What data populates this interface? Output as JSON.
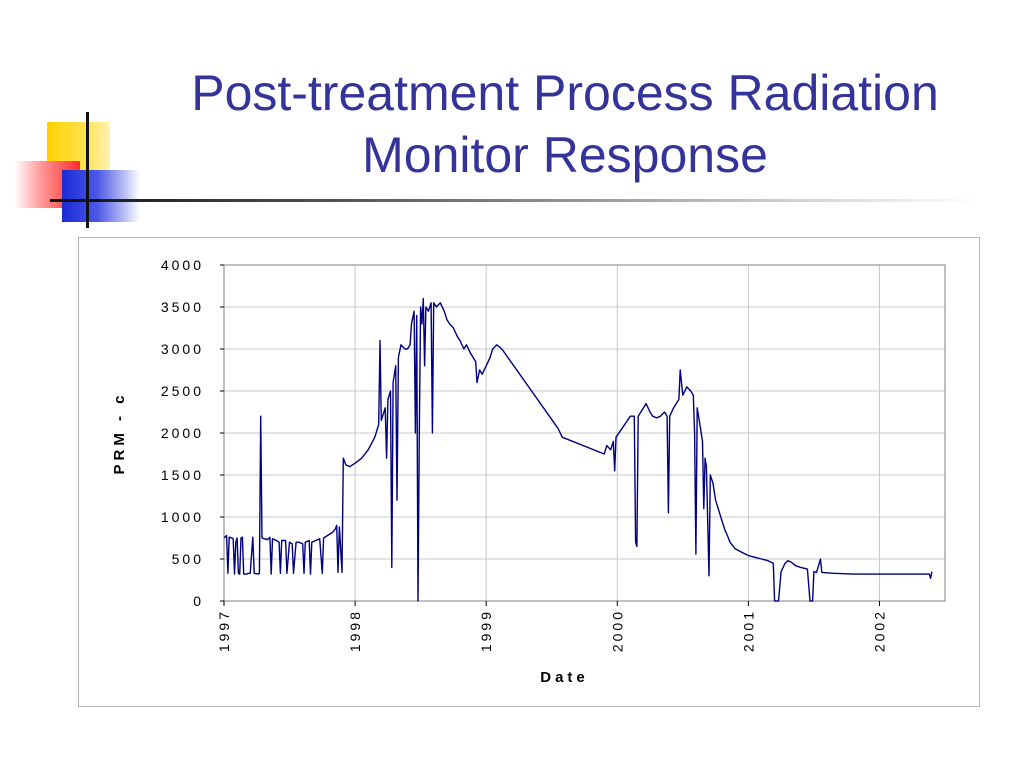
{
  "slide": {
    "title_line1": "Post-treatment Process Radiation",
    "title_line2": "Monitor Response",
    "title_color": "#333399"
  },
  "chart_data": {
    "type": "line",
    "title": "",
    "xlabel": "Date",
    "ylabel": "PRM - c",
    "xlim": [
      1997.0,
      2002.5
    ],
    "ylim": [
      0,
      4000
    ],
    "x_ticks": [
      "1997",
      "1998",
      "1999",
      "2000",
      "2001",
      "2002"
    ],
    "y_ticks": [
      "0",
      "500",
      "1000",
      "1500",
      "2000",
      "2500",
      "3000",
      "3500",
      "4000"
    ],
    "grid": true,
    "legend": "none",
    "series": [
      {
        "color": "#000080",
        "points": [
          [
            1997.0,
            750
          ],
          [
            1997.02,
            780
          ],
          [
            1997.03,
            330
          ],
          [
            1997.04,
            760
          ],
          [
            1997.06,
            750
          ],
          [
            1997.07,
            740
          ],
          [
            1997.08,
            320
          ],
          [
            1997.09,
            700
          ],
          [
            1997.1,
            750
          ],
          [
            1997.11,
            330
          ],
          [
            1997.12,
            320
          ],
          [
            1997.13,
            750
          ],
          [
            1997.14,
            760
          ],
          [
            1997.15,
            320
          ],
          [
            1997.17,
            320
          ],
          [
            1997.19,
            330
          ],
          [
            1997.2,
            330
          ],
          [
            1997.22,
            760
          ],
          [
            1997.23,
            330
          ],
          [
            1997.26,
            320
          ],
          [
            1997.27,
            330
          ],
          [
            1997.28,
            2200
          ],
          [
            1997.29,
            750
          ],
          [
            1997.31,
            740
          ],
          [
            1997.33,
            730
          ],
          [
            1997.35,
            760
          ],
          [
            1997.36,
            320
          ],
          [
            1997.37,
            740
          ],
          [
            1997.4,
            720
          ],
          [
            1997.42,
            700
          ],
          [
            1997.43,
            330
          ],
          [
            1997.44,
            720
          ],
          [
            1997.47,
            720
          ],
          [
            1997.48,
            330
          ],
          [
            1997.5,
            700
          ],
          [
            1997.52,
            680
          ],
          [
            1997.53,
            330
          ],
          [
            1997.55,
            700
          ],
          [
            1997.57,
            700
          ],
          [
            1997.6,
            680
          ],
          [
            1997.61,
            330
          ],
          [
            1997.62,
            700
          ],
          [
            1997.65,
            720
          ],
          [
            1997.66,
            320
          ],
          [
            1997.67,
            700
          ],
          [
            1997.7,
            720
          ],
          [
            1997.73,
            740
          ],
          [
            1997.75,
            330
          ],
          [
            1997.76,
            750
          ],
          [
            1997.8,
            790
          ],
          [
            1997.83,
            820
          ],
          [
            1997.85,
            860
          ],
          [
            1997.86,
            900
          ],
          [
            1997.87,
            340
          ],
          [
            1997.88,
            880
          ],
          [
            1997.9,
            340
          ],
          [
            1997.91,
            1700
          ],
          [
            1997.93,
            1620
          ],
          [
            1997.96,
            1600
          ],
          [
            1998.0,
            1640
          ],
          [
            1998.05,
            1700
          ],
          [
            1998.1,
            1800
          ],
          [
            1998.15,
            1950
          ],
          [
            1998.18,
            2100
          ],
          [
            1998.19,
            3100
          ],
          [
            1998.2,
            2150
          ],
          [
            1998.23,
            2300
          ],
          [
            1998.24,
            1700
          ],
          [
            1998.25,
            2400
          ],
          [
            1998.27,
            2500
          ],
          [
            1998.28,
            400
          ],
          [
            1998.29,
            2600
          ],
          [
            1998.31,
            2800
          ],
          [
            1998.32,
            1200
          ],
          [
            1998.33,
            2900
          ],
          [
            1998.35,
            3050
          ],
          [
            1998.38,
            3000
          ],
          [
            1998.4,
            3000
          ],
          [
            1998.42,
            3050
          ],
          [
            1998.43,
            3300
          ],
          [
            1998.45,
            3450
          ],
          [
            1998.46,
            2000
          ],
          [
            1998.47,
            3400
          ],
          [
            1998.48,
            0
          ],
          [
            1998.49,
            2000
          ],
          [
            1998.5,
            3500
          ],
          [
            1998.51,
            3300
          ],
          [
            1998.52,
            3600
          ],
          [
            1998.53,
            2800
          ],
          [
            1998.54,
            3500
          ],
          [
            1998.56,
            3450
          ],
          [
            1998.58,
            3550
          ],
          [
            1998.59,
            2000
          ],
          [
            1998.6,
            3550
          ],
          [
            1998.62,
            3500
          ],
          [
            1998.65,
            3550
          ],
          [
            1998.68,
            3450
          ],
          [
            1998.7,
            3350
          ],
          [
            1998.72,
            3300
          ],
          [
            1998.75,
            3250
          ],
          [
            1998.78,
            3150
          ],
          [
            1998.8,
            3100
          ],
          [
            1998.83,
            3000
          ],
          [
            1998.85,
            3050
          ],
          [
            1998.88,
            2950
          ],
          [
            1998.9,
            2900
          ],
          [
            1998.92,
            2850
          ],
          [
            1998.93,
            2600
          ],
          [
            1998.95,
            2750
          ],
          [
            1998.97,
            2700
          ],
          [
            1999.0,
            2800
          ],
          [
            1999.03,
            2900
          ],
          [
            1999.05,
            3000
          ],
          [
            1999.08,
            3050
          ],
          [
            1999.12,
            3000
          ],
          [
            1999.55,
            2050
          ],
          [
            1999.58,
            1950
          ],
          [
            1999.9,
            1750
          ],
          [
            1999.92,
            1850
          ],
          [
            1999.95,
            1800
          ],
          [
            1999.97,
            1900
          ],
          [
            1999.98,
            1550
          ],
          [
            1999.99,
            1950
          ],
          [
            2000.1,
            2200
          ],
          [
            2000.13,
            2200
          ],
          [
            2000.14,
            700
          ],
          [
            2000.15,
            650
          ],
          [
            2000.16,
            2200
          ],
          [
            2000.2,
            2300
          ],
          [
            2000.22,
            2350
          ],
          [
            2000.25,
            2250
          ],
          [
            2000.27,
            2200
          ],
          [
            2000.3,
            2180
          ],
          [
            2000.33,
            2200
          ],
          [
            2000.36,
            2250
          ],
          [
            2000.38,
            2200
          ],
          [
            2000.39,
            1050
          ],
          [
            2000.4,
            2200
          ],
          [
            2000.43,
            2300
          ],
          [
            2000.45,
            2350
          ],
          [
            2000.47,
            2400
          ],
          [
            2000.48,
            2750
          ],
          [
            2000.5,
            2450
          ],
          [
            2000.53,
            2550
          ],
          [
            2000.56,
            2500
          ],
          [
            2000.58,
            2450
          ],
          [
            2000.59,
            2000
          ],
          [
            2000.6,
            560
          ],
          [
            2000.61,
            2300
          ],
          [
            2000.63,
            2100
          ],
          [
            2000.65,
            1900
          ],
          [
            2000.66,
            1100
          ],
          [
            2000.67,
            1700
          ],
          [
            2000.68,
            1600
          ],
          [
            2000.7,
            300
          ],
          [
            2000.71,
            1500
          ],
          [
            2000.73,
            1400
          ],
          [
            2000.75,
            1200
          ],
          [
            2000.78,
            1050
          ],
          [
            2000.8,
            950
          ],
          [
            2000.82,
            850
          ],
          [
            2000.84,
            780
          ],
          [
            2000.86,
            700
          ],
          [
            2000.88,
            660
          ],
          [
            2000.9,
            620
          ],
          [
            2000.95,
            580
          ],
          [
            2001.0,
            540
          ],
          [
            2001.05,
            520
          ],
          [
            2001.1,
            500
          ],
          [
            2001.15,
            480
          ],
          [
            2001.19,
            450
          ],
          [
            2001.2,
            0
          ],
          [
            2001.23,
            0
          ],
          [
            2001.25,
            350
          ],
          [
            2001.28,
            450
          ],
          [
            2001.3,
            480
          ],
          [
            2001.33,
            460
          ],
          [
            2001.36,
            420
          ],
          [
            2001.4,
            400
          ],
          [
            2001.45,
            380
          ],
          [
            2001.47,
            0
          ],
          [
            2001.49,
            0
          ],
          [
            2001.5,
            350
          ],
          [
            2001.52,
            340
          ],
          [
            2001.55,
            500
          ],
          [
            2001.56,
            340
          ],
          [
            2001.65,
            330
          ],
          [
            2001.8,
            320
          ],
          [
            2001.95,
            320
          ],
          [
            2002.1,
            320
          ],
          [
            2002.25,
            320
          ],
          [
            2002.38,
            320
          ],
          [
            2002.39,
            270
          ],
          [
            2002.4,
            350
          ]
        ]
      }
    ]
  }
}
